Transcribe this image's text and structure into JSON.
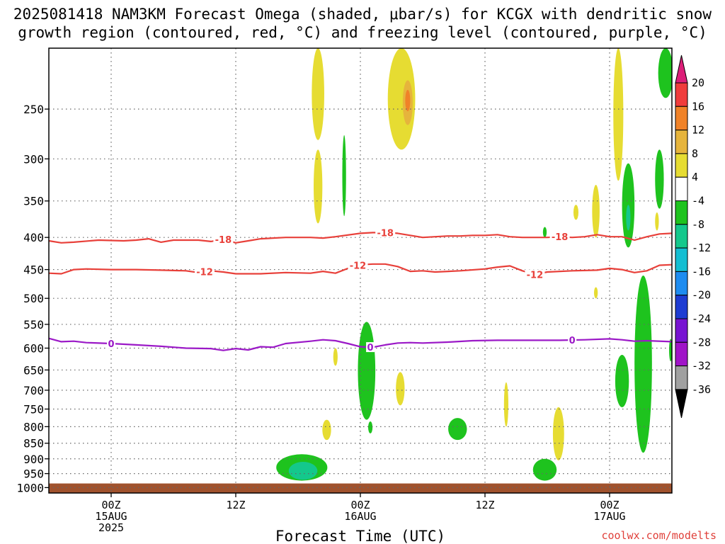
{
  "chart_data": {
    "type": "heatmap",
    "title_line1": "2025081418 NAM3KM Forecast Omega (shaded, μbar/s) for KCGX with dendritic snow",
    "title_line2": "growth region (contoured, red, °C) and freezing level (contoured, purple, °C)",
    "xlabel": "Forecast Time (UTC)",
    "credit": "coolwx.com/modelts",
    "x_hours_range": [
      -5,
      45
    ],
    "p_range": [
      1020,
      200
    ],
    "y_axis_scale": "log-pressure",
    "y_ticks": [
      250,
      300,
      350,
      400,
      450,
      500,
      550,
      600,
      650,
      700,
      750,
      800,
      850,
      900,
      950,
      1000
    ],
    "y_tick_labels": [
      "250",
      "300",
      "350",
      "400",
      "450",
      "500",
      "550",
      "600",
      "650",
      "700",
      "750",
      "800",
      "850",
      "900",
      "950",
      "1000"
    ],
    "x_ticks": [
      {
        "hour": 0,
        "l1": "00Z",
        "l2": "15AUG",
        "l3": "2025"
      },
      {
        "hour": 10,
        "l1": "12Z",
        "l2": "",
        "l3": ""
      },
      {
        "hour": 20,
        "l1": "00Z",
        "l2": "16AUG",
        "l3": ""
      },
      {
        "hour": 30,
        "l1": "12Z",
        "l2": "",
        "l3": ""
      },
      {
        "hour": 40,
        "l1": "00Z",
        "l2": "17AUG",
        "l3": ""
      }
    ],
    "grid": true,
    "ground_top_p": 985,
    "ground_color": "#a0522d",
    "colorbar": {
      "labels": [
        "20",
        "16",
        "12",
        "8",
        "4",
        "-4",
        "-8",
        "-12",
        "-16",
        "-20",
        "-24",
        "-28",
        "-32",
        "-36"
      ],
      "colors": [
        "#f03c3c",
        "#f08228",
        "#e6b43c",
        "#e6dc32",
        "#ffffff",
        "#1ec31e",
        "#14c88c",
        "#14bed2",
        "#1e8cf0",
        "#1e3cd2",
        "#7814d2",
        "#a014c8",
        "#a0a0a0"
      ],
      "top_color": "#dc1e78",
      "bottom_color": "#000000"
    },
    "contours": [
      {
        "name": "-18",
        "color": "#e8403a",
        "labels": [
          "-18",
          "-18",
          "-18"
        ],
        "points": [
          [
            -5,
            405
          ],
          [
            -4,
            408
          ],
          [
            -3,
            407
          ],
          [
            -1,
            404
          ],
          [
            1,
            405
          ],
          [
            2,
            404
          ],
          [
            3,
            402
          ],
          [
            4,
            407
          ],
          [
            5,
            404
          ],
          [
            7,
            404
          ],
          [
            8,
            406
          ],
          [
            9,
            403
          ],
          [
            10,
            408
          ],
          [
            11,
            405
          ],
          [
            12,
            402
          ],
          [
            14,
            400
          ],
          [
            16,
            400
          ],
          [
            17,
            401
          ],
          [
            18,
            399
          ],
          [
            20,
            394
          ],
          [
            21,
            393
          ],
          [
            22,
            393
          ],
          [
            23,
            394
          ],
          [
            24,
            397
          ],
          [
            25,
            400
          ],
          [
            26,
            399
          ],
          [
            27,
            398
          ],
          [
            28,
            398
          ],
          [
            29,
            397
          ],
          [
            30,
            397
          ],
          [
            31,
            396
          ],
          [
            32,
            399
          ],
          [
            33,
            400
          ],
          [
            35,
            400
          ],
          [
            36,
            399
          ],
          [
            37,
            400
          ],
          [
            38,
            399
          ],
          [
            39,
            396
          ],
          [
            40,
            399
          ],
          [
            41,
            399
          ],
          [
            42,
            404
          ],
          [
            43,
            399
          ],
          [
            44,
            395
          ],
          [
            45,
            394
          ]
        ]
      },
      {
        "name": "-12",
        "color": "#e8403a",
        "labels": [
          "-12",
          "-12",
          "-12"
        ],
        "points": [
          [
            -5,
            456
          ],
          [
            -4,
            457
          ],
          [
            -3,
            450
          ],
          [
            -2,
            449
          ],
          [
            0,
            450
          ],
          [
            2,
            450
          ],
          [
            4,
            451
          ],
          [
            6,
            452
          ],
          [
            7,
            455
          ],
          [
            8,
            452
          ],
          [
            9,
            454
          ],
          [
            10,
            457
          ],
          [
            12,
            457
          ],
          [
            14,
            455
          ],
          [
            16,
            456
          ],
          [
            17,
            453
          ],
          [
            18,
            456
          ],
          [
            19,
            448
          ],
          [
            20,
            442
          ],
          [
            21,
            441
          ],
          [
            22,
            441
          ],
          [
            23,
            445
          ],
          [
            24,
            453
          ],
          [
            25,
            452
          ],
          [
            26,
            454
          ],
          [
            28,
            452
          ],
          [
            30,
            449
          ],
          [
            31,
            446
          ],
          [
            32,
            444
          ],
          [
            33,
            452
          ],
          [
            34,
            458
          ],
          [
            35,
            454
          ],
          [
            37,
            452
          ],
          [
            39,
            451
          ],
          [
            40,
            448
          ],
          [
            41,
            450
          ],
          [
            42,
            455
          ],
          [
            43,
            452
          ],
          [
            44,
            443
          ],
          [
            45,
            442
          ]
        ]
      },
      {
        "name": "0",
        "color": "#9b19c7",
        "labels": [
          "0",
          "0",
          "0"
        ],
        "points": [
          [
            -5,
            579
          ],
          [
            -4,
            586
          ],
          [
            -3,
            585
          ],
          [
            -2,
            588
          ],
          [
            0,
            590
          ],
          [
            2,
            593
          ],
          [
            4,
            596
          ],
          [
            6,
            600
          ],
          [
            8,
            601
          ],
          [
            9,
            605
          ],
          [
            10,
            601
          ],
          [
            11,
            604
          ],
          [
            12,
            597
          ],
          [
            13,
            598
          ],
          [
            14,
            590
          ],
          [
            16,
            585
          ],
          [
            17,
            582
          ],
          [
            18,
            584
          ],
          [
            19,
            590
          ],
          [
            20,
            597
          ],
          [
            21,
            598
          ],
          [
            22,
            593
          ],
          [
            23,
            589
          ],
          [
            24,
            588
          ],
          [
            25,
            589
          ],
          [
            27,
            587
          ],
          [
            29,
            584
          ],
          [
            31,
            583
          ],
          [
            33,
            583
          ],
          [
            36,
            583
          ],
          [
            38,
            582
          ],
          [
            40,
            580
          ],
          [
            41,
            582
          ],
          [
            42,
            585
          ],
          [
            43,
            584
          ],
          [
            45,
            586
          ]
        ]
      }
    ],
    "omega_regions": [
      {
        "value_range": "4-8",
        "hour": 16.6,
        "p_top": 200,
        "p_bottom": 280,
        "width_h": 1.0
      },
      {
        "value_range": "4-8",
        "hour": 16.6,
        "p_top": 290,
        "p_bottom": 380,
        "width_h": 0.7
      },
      {
        "value_range": "-4--8",
        "hour": 18.7,
        "p_top": 275,
        "p_bottom": 370,
        "width_h": 0.3
      },
      {
        "value_range": "4-8",
        "hour": 23.3,
        "p_top": 200,
        "p_bottom": 290,
        "width_h": 2.2
      },
      {
        "value_range": "8-12",
        "hour": 23.8,
        "p_top": 225,
        "p_bottom": 265,
        "width_h": 0.8
      },
      {
        "value_range": "12-16",
        "hour": 23.8,
        "p_top": 233,
        "p_bottom": 252,
        "width_h": 0.4
      },
      {
        "value_range": "-4--8",
        "hour": 20.5,
        "p_top": 545,
        "p_bottom": 780,
        "width_h": 1.4
      },
      {
        "value_range": "4-8",
        "hour": 23.2,
        "p_top": 655,
        "p_bottom": 740,
        "width_h": 0.7
      },
      {
        "value_range": "4-8",
        "hour": 18.0,
        "p_top": 600,
        "p_bottom": 640,
        "width_h": 0.35
      },
      {
        "value_range": "4-8",
        "hour": 17.3,
        "p_top": 780,
        "p_bottom": 840,
        "width_h": 0.7
      },
      {
        "value_range": "-4--8",
        "hour": 20.8,
        "p_top": 785,
        "p_bottom": 820,
        "width_h": 0.35
      },
      {
        "value_range": "-4--8",
        "hour": 15.3,
        "p_top": 885,
        "p_bottom": 975,
        "width_h": 4.1
      },
      {
        "value_range": "-8--12",
        "hour": 15.4,
        "p_top": 910,
        "p_bottom": 972,
        "width_h": 2.3
      },
      {
        "value_range": "-4--8",
        "hour": 27.8,
        "p_top": 775,
        "p_bottom": 840,
        "width_h": 1.5
      },
      {
        "value_range": "4-8",
        "hour": 31.7,
        "p_top": 680,
        "p_bottom": 800,
        "width_h": 0.35
      },
      {
        "value_range": "-4--8",
        "hour": 34.8,
        "p_top": 900,
        "p_bottom": 975,
        "width_h": 1.9
      },
      {
        "value_range": "4-8",
        "hour": 35.9,
        "p_top": 745,
        "p_bottom": 905,
        "width_h": 0.9
      },
      {
        "value_range": "-4--8",
        "hour": 34.8,
        "p_top": 385,
        "p_bottom": 400,
        "width_h": 0.3
      },
      {
        "value_range": "4-8",
        "hour": 37.3,
        "p_top": 355,
        "p_bottom": 375,
        "width_h": 0.4
      },
      {
        "value_range": "4-8",
        "hour": 38.9,
        "p_top": 330,
        "p_bottom": 400,
        "width_h": 0.6
      },
      {
        "value_range": "4-8",
        "hour": 38.9,
        "p_top": 480,
        "p_bottom": 500,
        "width_h": 0.3
      },
      {
        "value_range": "4-8",
        "hour": 40.7,
        "p_top": 200,
        "p_bottom": 325,
        "width_h": 0.8
      },
      {
        "value_range": "-4--8",
        "hour": 41.5,
        "p_top": 305,
        "p_bottom": 415,
        "width_h": 1.0
      },
      {
        "value_range": "-8--12",
        "hour": 41.5,
        "p_top": 355,
        "p_bottom": 390,
        "width_h": 0.35
      },
      {
        "value_range": "4-8",
        "hour": 43.8,
        "p_top": 365,
        "p_bottom": 390,
        "width_h": 0.3
      },
      {
        "value_range": "-4--8",
        "hour": 44.0,
        "p_top": 290,
        "p_bottom": 360,
        "width_h": 0.7
      },
      {
        "value_range": "-4--8",
        "hour": 44.5,
        "p_top": 200,
        "p_bottom": 240,
        "width_h": 1.2
      },
      {
        "value_range": "-4--8",
        "hour": 41.0,
        "p_top": 615,
        "p_bottom": 745,
        "width_h": 1.1
      },
      {
        "value_range": "-4--8",
        "hour": 42.7,
        "p_top": 460,
        "p_bottom": 880,
        "width_h": 1.4
      },
      {
        "value_range": "-4--8",
        "hour": 44.9,
        "p_top": 580,
        "p_bottom": 630,
        "width_h": 0.25
      }
    ]
  }
}
